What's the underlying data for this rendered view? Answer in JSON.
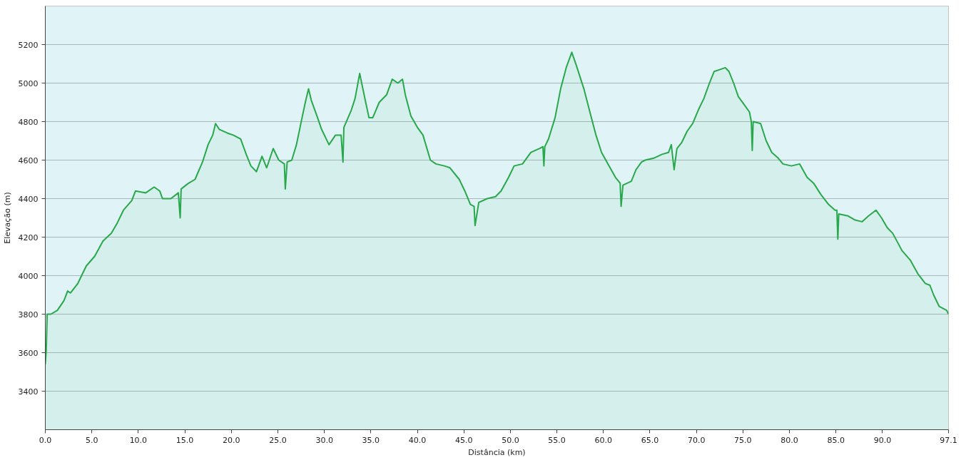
{
  "chart_data": {
    "type": "area",
    "xlabel": "Distância (km)",
    "ylabel": "Elevação (m)",
    "color": "#28a84a",
    "x": [
      0.0,
      0.1,
      0.2,
      0.6,
      1.3,
      2.0,
      2.4,
      2.7,
      3.5,
      4.4,
      5.3,
      6.2,
      7.1,
      7.7,
      8.4,
      9.3,
      9.7,
      10.8,
      11.7,
      12.3,
      12.6,
      13.5,
      14.3,
      14.5,
      14.6,
      15.4,
      16.1,
      16.9,
      17.5,
      18.0,
      18.3,
      18.7,
      19.6,
      20.2,
      21.0,
      21.6,
      22.1,
      22.7,
      23.3,
      23.8,
      24.5,
      25.1,
      25.7,
      25.8,
      26.0,
      26.5,
      27.0,
      27.6,
      28.0,
      28.3,
      28.6,
      29.2,
      29.7,
      30.5,
      31.2,
      31.8,
      32.0,
      32.1,
      32.9,
      33.3,
      33.8,
      34.4,
      34.8,
      35.2,
      35.9,
      36.7,
      37.3,
      37.9,
      38.4,
      38.7,
      39.3,
      40.0,
      40.6,
      41.4,
      42.0,
      42.9,
      43.5,
      44.5,
      45.1,
      45.7,
      46.1,
      46.2,
      46.6,
      47.5,
      48.4,
      49.0,
      49.8,
      50.4,
      51.3,
      52.2,
      53.1,
      53.5,
      53.6,
      53.7,
      54.1,
      54.8,
      55.4,
      56.0,
      56.6,
      57.1,
      57.9,
      58.6,
      59.2,
      59.8,
      60.6,
      61.3,
      61.8,
      61.9,
      62.1,
      63.0,
      63.5,
      64.1,
      64.5,
      65.4,
      66.3,
      67.0,
      67.3,
      67.6,
      67.9,
      68.4,
      69.0,
      69.6,
      70.2,
      70.8,
      71.4,
      71.9,
      72.5,
      73.1,
      73.5,
      74.0,
      74.5,
      75.1,
      75.7,
      75.9,
      76.0,
      76.1,
      76.9,
      77.5,
      78.1,
      78.8,
      79.3,
      80.2,
      81.1,
      81.9,
      82.6,
      83.4,
      84.2,
      84.9,
      85.1,
      85.2,
      85.3,
      86.3,
      87.0,
      87.8,
      88.5,
      89.3,
      89.9,
      90.5,
      91.1,
      92.1,
      93.0,
      93.8,
      94.6,
      95.1,
      95.5,
      96.1,
      96.9,
      97.1
    ],
    "values": [
      3540,
      3610,
      3800,
      3800,
      3820,
      3870,
      3920,
      3910,
      3960,
      4050,
      4100,
      4180,
      4220,
      4270,
      4340,
      4390,
      4440,
      4430,
      4460,
      4440,
      4400,
      4400,
      4430,
      4300,
      4450,
      4480,
      4500,
      4590,
      4680,
      4730,
      4790,
      4760,
      4740,
      4730,
      4710,
      4630,
      4570,
      4540,
      4620,
      4560,
      4660,
      4600,
      4580,
      4450,
      4590,
      4600,
      4680,
      4820,
      4910,
      4970,
      4910,
      4830,
      4760,
      4680,
      4730,
      4730,
      4590,
      4770,
      4860,
      4920,
      5050,
      4910,
      4820,
      4820,
      4900,
      4940,
      5020,
      5000,
      5020,
      4940,
      4830,
      4770,
      4730,
      4600,
      4580,
      4570,
      4560,
      4500,
      4440,
      4370,
      4360,
      4260,
      4380,
      4400,
      4410,
      4440,
      4510,
      4570,
      4580,
      4640,
      4660,
      4670,
      4570,
      4670,
      4710,
      4820,
      4970,
      5080,
      5160,
      5090,
      4970,
      4840,
      4730,
      4640,
      4570,
      4510,
      4480,
      4360,
      4470,
      4490,
      4550,
      4590,
      4600,
      4610,
      4630,
      4640,
      4680,
      4550,
      4660,
      4690,
      4750,
      4790,
      4860,
      4920,
      5000,
      5060,
      5070,
      5080,
      5060,
      5000,
      4930,
      4890,
      4850,
      4800,
      4650,
      4800,
      4790,
      4700,
      4640,
      4610,
      4580,
      4570,
      4580,
      4510,
      4480,
      4420,
      4370,
      4340,
      4340,
      4190,
      4320,
      4310,
      4290,
      4280,
      4310,
      4340,
      4300,
      4250,
      4220,
      4130,
      4080,
      4010,
      3960,
      3950,
      3900,
      3840,
      3820,
      3800
    ],
    "xlim": [
      0,
      97.1
    ],
    "xticks": [
      {
        "value": 0,
        "label": "0.0"
      },
      {
        "value": 5,
        "label": "5.0"
      },
      {
        "value": 10,
        "label": "10.0"
      },
      {
        "value": 15,
        "label": "15.0"
      },
      {
        "value": 20,
        "label": "20.0"
      },
      {
        "value": 25,
        "label": "25.0"
      },
      {
        "value": 30,
        "label": "30.0"
      },
      {
        "value": 35,
        "label": "35.0"
      },
      {
        "value": 40,
        "label": "40.0"
      },
      {
        "value": 45,
        "label": "45.0"
      },
      {
        "value": 50,
        "label": "50.0"
      },
      {
        "value": 55,
        "label": "55.0"
      },
      {
        "value": 60,
        "label": "60.0"
      },
      {
        "value": 65,
        "label": "65.0"
      },
      {
        "value": 70,
        "label": "70.0"
      },
      {
        "value": 75,
        "label": "75.0"
      },
      {
        "value": 80,
        "label": "80.0"
      },
      {
        "value": 85,
        "label": "85.0"
      },
      {
        "value": 90,
        "label": "90.0"
      },
      97.1
    ],
    "ylim": [
      3200,
      5400
    ],
    "yticks": [
      3400,
      3600,
      3800,
      4000,
      4200,
      4400,
      4600,
      4800,
      5000,
      5200
    ],
    "grid": "y"
  }
}
